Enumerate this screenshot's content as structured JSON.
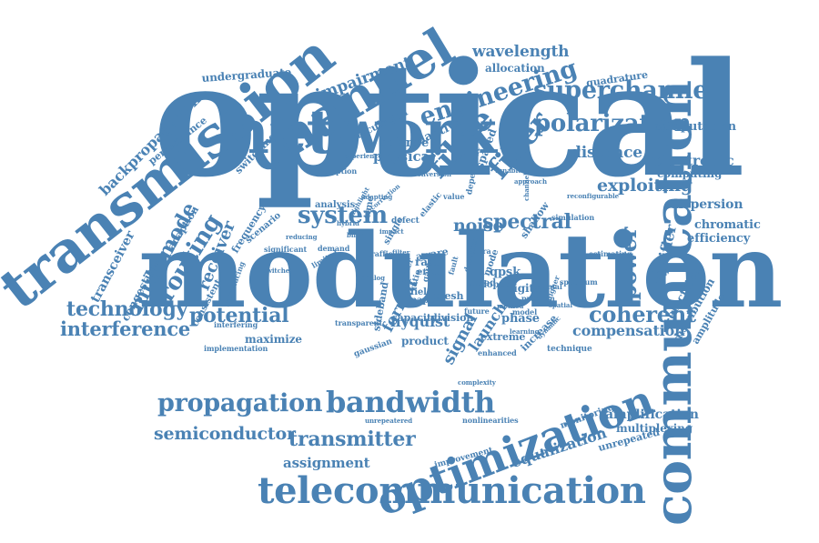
{
  "word_color": "#4a82b4",
  "words": [
    {
      "text": "optical"
    },
    {
      "text": "modulation"
    },
    {
      "text": "network"
    },
    {
      "text": "transmission"
    },
    {
      "text": "communication"
    },
    {
      "text": "channel"
    },
    {
      "text": "telecommunication"
    },
    {
      "text": "optimization"
    },
    {
      "text": "bandwidth"
    },
    {
      "text": "propagation"
    },
    {
      "text": "engineering"
    },
    {
      "text": "superchannel"
    },
    {
      "text": "polarization"
    },
    {
      "text": "fibre"
    },
    {
      "text": "fiber"
    },
    {
      "text": "system"
    },
    {
      "text": "potential"
    },
    {
      "text": "coherent"
    },
    {
      "text": "spectral"
    },
    {
      "text": "noise"
    },
    {
      "text": "routing"
    },
    {
      "text": "multimode"
    },
    {
      "text": "power"
    },
    {
      "text": "technology"
    },
    {
      "text": "interference"
    },
    {
      "text": "semiconductor"
    },
    {
      "text": "transmitter"
    },
    {
      "text": "wavelength"
    },
    {
      "text": "impairment"
    },
    {
      "text": "exploiting"
    },
    {
      "text": "distance"
    },
    {
      "text": "electronic"
    },
    {
      "text": "compensation"
    },
    {
      "text": "dispersion"
    },
    {
      "text": "equalization"
    },
    {
      "text": "assignment"
    },
    {
      "text": "amplification"
    },
    {
      "text": "backpropagation"
    },
    {
      "text": "receiver"
    },
    {
      "text": "transceiver"
    },
    {
      "text": "amplifier"
    },
    {
      "text": "chromatic"
    },
    {
      "text": "efficiency"
    },
    {
      "text": "computation"
    },
    {
      "text": "computing"
    },
    {
      "text": "signal"
    },
    {
      "text": "format"
    },
    {
      "text": "launch"
    },
    {
      "text": "allocation"
    },
    {
      "text": "quadrature"
    },
    {
      "text": "undergraduate"
    },
    {
      "text": "performance"
    },
    {
      "text": "adaptive"
    },
    {
      "text": "physical"
    },
    {
      "text": "science"
    },
    {
      "text": "calculation"
    },
    {
      "text": "switching"
    },
    {
      "text": "adaption"
    },
    {
      "text": "congestion"
    },
    {
      "text": "consistent"
    },
    {
      "text": "multiplexing"
    },
    {
      "text": "unrepeated"
    },
    {
      "text": "maximize"
    },
    {
      "text": "product"
    },
    {
      "text": "nyquist"
    },
    {
      "text": "phase"
    },
    {
      "text": "digital"
    },
    {
      "text": "capacity"
    },
    {
      "text": "division"
    },
    {
      "text": "electrical"
    },
    {
      "text": "distribution"
    },
    {
      "text": "amplitude"
    },
    {
      "text": "frequency"
    },
    {
      "text": "extreme"
    },
    {
      "text": "increase"
    },
    {
      "text": "qpsk"
    },
    {
      "text": "rate"
    },
    {
      "text": "mesh"
    },
    {
      "text": "monitoring"
    },
    {
      "text": "technique"
    },
    {
      "text": "shallow"
    },
    {
      "text": "sideband"
    },
    {
      "text": "gaussian"
    },
    {
      "text": "implementation"
    },
    {
      "text": "transparent"
    },
    {
      "text": "analysis"
    },
    {
      "text": "mode"
    },
    {
      "text": "aware"
    },
    {
      "text": "error"
    },
    {
      "text": "traffic"
    },
    {
      "text": "defect"
    },
    {
      "text": "field"
    },
    {
      "text": "spaced"
    },
    {
      "text": "doped"
    },
    {
      "text": "based"
    },
    {
      "text": "assumption"
    },
    {
      "text": "experience"
    },
    {
      "text": "conversion"
    },
    {
      "text": "paper"
    },
    {
      "text": "single"
    },
    {
      "text": "scenario"
    },
    {
      "text": "improvement"
    },
    {
      "text": "enhanced"
    },
    {
      "text": "interfering"
    },
    {
      "text": "significant"
    },
    {
      "text": "introducing"
    },
    {
      "text": "simulation"
    },
    {
      "text": "nonlinearities"
    },
    {
      "text": "estimating"
    },
    {
      "text": "reconfigurable"
    },
    {
      "text": "unrepeatered"
    },
    {
      "text": "demand"
    },
    {
      "text": "time"
    },
    {
      "text": "gain"
    },
    {
      "text": "ratio"
    },
    {
      "text": "order"
    },
    {
      "text": "value"
    },
    {
      "text": "elastic"
    },
    {
      "text": "dependent"
    },
    {
      "text": "fault"
    },
    {
      "text": "detection"
    },
    {
      "text": "channels"
    },
    {
      "text": "spectrum"
    },
    {
      "text": "model"
    },
    {
      "text": "problem"
    },
    {
      "text": "optimal"
    },
    {
      "text": "future"
    },
    {
      "text": "higher"
    },
    {
      "text": "learning"
    },
    {
      "text": "dynamic"
    },
    {
      "text": "adapting"
    },
    {
      "text": "correction"
    },
    {
      "text": "impact"
    },
    {
      "text": "switched"
    },
    {
      "text": "limited"
    },
    {
      "text": "reducing"
    },
    {
      "text": "tunable"
    },
    {
      "text": "approach"
    },
    {
      "text": "highlight"
    },
    {
      "text": "ultra"
    },
    {
      "text": "complexity"
    },
    {
      "text": "filter"
    },
    {
      "text": "blind"
    },
    {
      "text": "hybrid"
    },
    {
      "text": "method"
    },
    {
      "text": "analog"
    },
    {
      "text": "spatial"
    }
  ]
}
